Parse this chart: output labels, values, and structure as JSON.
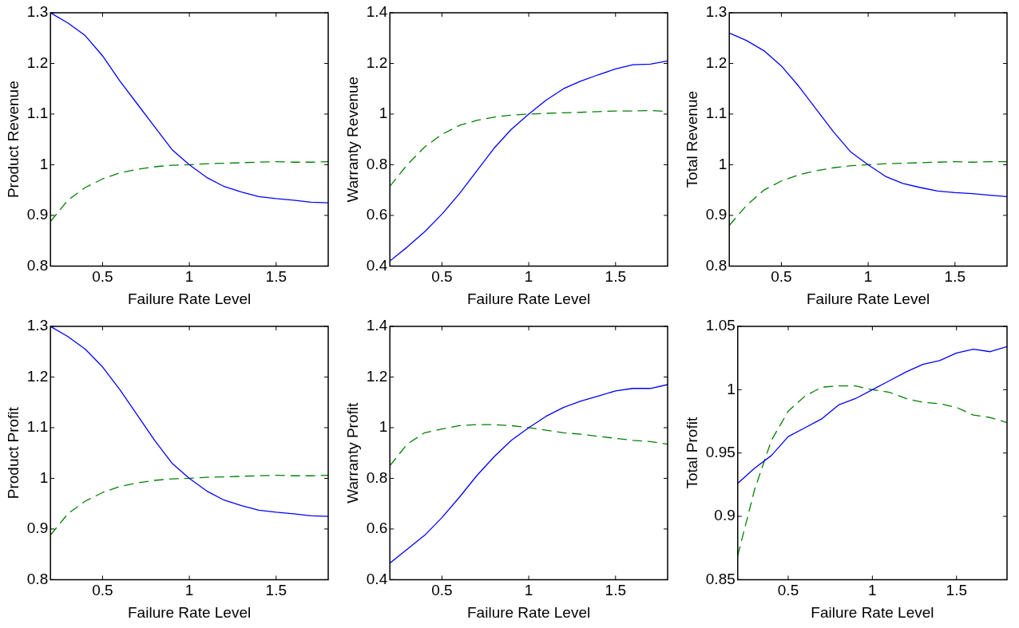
{
  "chart_data": [
    {
      "type": "line",
      "xlabel": "Failure Rate Level",
      "ylabel": "Product Revenue",
      "x": [
        0.2,
        0.3,
        0.4,
        0.5,
        0.6,
        0.7,
        0.8,
        0.9,
        1.0,
        1.1,
        1.2,
        1.3,
        1.4,
        1.5,
        1.6,
        1.7,
        1.8
      ],
      "xlim": [
        0.2,
        1.8
      ],
      "xticks": [
        0.5,
        1,
        1.5
      ],
      "ylim": [
        0.8,
        1.3
      ],
      "yticks": [
        0.8,
        0.9,
        1,
        1.1,
        1.2,
        1.3
      ],
      "grid": false,
      "marker": "none",
      "series": [
        {
          "color": "#0000ff",
          "line_style": "solid",
          "values": [
            1.3,
            1.28,
            1.255,
            1.215,
            1.165,
            1.12,
            1.075,
            1.03,
            1.0,
            0.975,
            0.957,
            0.946,
            0.937,
            0.933,
            0.93,
            0.926,
            0.925
          ]
        },
        {
          "color": "#008000",
          "line_style": "dashed",
          "values": [
            0.888,
            0.93,
            0.955,
            0.972,
            0.984,
            0.991,
            0.996,
            0.999,
            1.0,
            1.002,
            1.003,
            1.004,
            1.005,
            1.006,
            1.005,
            1.005,
            1.006
          ]
        }
      ]
    },
    {
      "type": "line",
      "xlabel": "Failure Rate Level",
      "ylabel": "Warranty Revenue",
      "x": [
        0.2,
        0.3,
        0.4,
        0.5,
        0.6,
        0.7,
        0.8,
        0.9,
        1.0,
        1.1,
        1.2,
        1.3,
        1.4,
        1.5,
        1.6,
        1.7,
        1.8
      ],
      "xlim": [
        0.2,
        1.8
      ],
      "xticks": [
        0.5,
        1,
        1.5
      ],
      "ylim": [
        0.4,
        1.4
      ],
      "yticks": [
        0.4,
        0.6,
        0.8,
        1,
        1.2,
        1.4
      ],
      "grid": false,
      "marker": "none",
      "series": [
        {
          "color": "#0000ff",
          "line_style": "solid",
          "values": [
            0.42,
            0.475,
            0.535,
            0.605,
            0.685,
            0.775,
            0.865,
            0.94,
            1.0,
            1.055,
            1.1,
            1.13,
            1.155,
            1.178,
            1.195,
            1.197,
            1.21
          ]
        },
        {
          "color": "#008000",
          "line_style": "dashed",
          "values": [
            0.715,
            0.8,
            0.87,
            0.92,
            0.955,
            0.975,
            0.988,
            0.996,
            1.0,
            1.003,
            1.005,
            1.007,
            1.01,
            1.012,
            1.012,
            1.014,
            1.01
          ]
        }
      ]
    },
    {
      "type": "line",
      "xlabel": "Failure Rate Level",
      "ylabel": "Total Revenue",
      "x": [
        0.2,
        0.3,
        0.4,
        0.5,
        0.6,
        0.7,
        0.8,
        0.9,
        1.0,
        1.1,
        1.2,
        1.3,
        1.4,
        1.5,
        1.6,
        1.7,
        1.8
      ],
      "xlim": [
        0.2,
        1.8
      ],
      "xticks": [
        0.5,
        1,
        1.5
      ],
      "ylim": [
        0.8,
        1.3
      ],
      "yticks": [
        0.8,
        0.9,
        1,
        1.1,
        1.2,
        1.3
      ],
      "grid": false,
      "marker": "none",
      "series": [
        {
          "color": "#0000ff",
          "line_style": "solid",
          "values": [
            1.26,
            1.245,
            1.225,
            1.195,
            1.155,
            1.11,
            1.065,
            1.025,
            1.0,
            0.977,
            0.963,
            0.955,
            0.948,
            0.945,
            0.943,
            0.94,
            0.937
          ]
        },
        {
          "color": "#008000",
          "line_style": "dashed",
          "values": [
            0.88,
            0.92,
            0.95,
            0.968,
            0.98,
            0.988,
            0.994,
            0.998,
            1.0,
            1.002,
            1.003,
            1.004,
            1.005,
            1.006,
            1.005,
            1.006,
            1.006
          ]
        }
      ]
    },
    {
      "type": "line",
      "xlabel": "Failure Rate Level",
      "ylabel": "Product Profit",
      "x": [
        0.2,
        0.3,
        0.4,
        0.5,
        0.6,
        0.7,
        0.8,
        0.9,
        1.0,
        1.1,
        1.2,
        1.3,
        1.4,
        1.5,
        1.6,
        1.7,
        1.8
      ],
      "xlim": [
        0.2,
        1.8
      ],
      "xticks": [
        0.5,
        1,
        1.5
      ],
      "ylim": [
        0.8,
        1.3
      ],
      "yticks": [
        0.8,
        0.9,
        1,
        1.1,
        1.2,
        1.3
      ],
      "grid": false,
      "marker": "none",
      "series": [
        {
          "color": "#0000ff",
          "line_style": "solid",
          "values": [
            1.3,
            1.28,
            1.255,
            1.22,
            1.175,
            1.125,
            1.075,
            1.03,
            1.0,
            0.975,
            0.957,
            0.946,
            0.937,
            0.933,
            0.93,
            0.926,
            0.925
          ]
        },
        {
          "color": "#008000",
          "line_style": "dashed",
          "values": [
            0.888,
            0.93,
            0.955,
            0.972,
            0.984,
            0.991,
            0.996,
            0.999,
            1.0,
            1.002,
            1.003,
            1.004,
            1.005,
            1.006,
            1.005,
            1.005,
            1.006
          ]
        }
      ]
    },
    {
      "type": "line",
      "xlabel": "Failure Rate Level",
      "ylabel": "Warranty Profit",
      "x": [
        0.2,
        0.3,
        0.4,
        0.5,
        0.6,
        0.7,
        0.8,
        0.9,
        1.0,
        1.1,
        1.2,
        1.3,
        1.4,
        1.5,
        1.6,
        1.7,
        1.8
      ],
      "xlim": [
        0.2,
        1.8
      ],
      "xticks": [
        0.5,
        1,
        1.5
      ],
      "ylim": [
        0.4,
        1.4
      ],
      "yticks": [
        0.4,
        0.6,
        0.8,
        1,
        1.2,
        1.4
      ],
      "grid": false,
      "marker": "none",
      "series": [
        {
          "color": "#0000ff",
          "line_style": "solid",
          "values": [
            0.465,
            0.52,
            0.575,
            0.645,
            0.725,
            0.81,
            0.885,
            0.95,
            1.0,
            1.045,
            1.08,
            1.105,
            1.125,
            1.145,
            1.155,
            1.155,
            1.17
          ]
        },
        {
          "color": "#008000",
          "line_style": "dashed",
          "values": [
            0.85,
            0.935,
            0.98,
            0.995,
            1.008,
            1.012,
            1.012,
            1.008,
            1.0,
            0.99,
            0.98,
            0.974,
            0.966,
            0.958,
            0.95,
            0.945,
            0.935
          ]
        }
      ]
    },
    {
      "type": "line",
      "xlabel": "Failure Rate Level",
      "ylabel": "Total Profit",
      "x": [
        0.2,
        0.3,
        0.4,
        0.5,
        0.6,
        0.7,
        0.8,
        0.9,
        1.0,
        1.1,
        1.2,
        1.3,
        1.4,
        1.5,
        1.6,
        1.7,
        1.8
      ],
      "xlim": [
        0.2,
        1.8
      ],
      "xticks": [
        0.5,
        1,
        1.5
      ],
      "ylim": [
        0.85,
        1.05
      ],
      "yticks": [
        0.85,
        0.9,
        0.95,
        1,
        1.05
      ],
      "grid": false,
      "marker": "none",
      "series": [
        {
          "color": "#0000ff",
          "line_style": "solid",
          "values": [
            0.926,
            0.938,
            0.948,
            0.963,
            0.97,
            0.977,
            0.988,
            0.993,
            1.0,
            1.007,
            1.014,
            1.02,
            1.023,
            1.029,
            1.032,
            1.03,
            1.034
          ]
        },
        {
          "color": "#008000",
          "line_style": "dashed",
          "values": [
            0.869,
            0.921,
            0.96,
            0.983,
            0.995,
            1.002,
            1.003,
            1.003,
            1.0,
            0.998,
            0.993,
            0.99,
            0.989,
            0.986,
            0.98,
            0.978,
            0.974
          ]
        }
      ]
    }
  ]
}
